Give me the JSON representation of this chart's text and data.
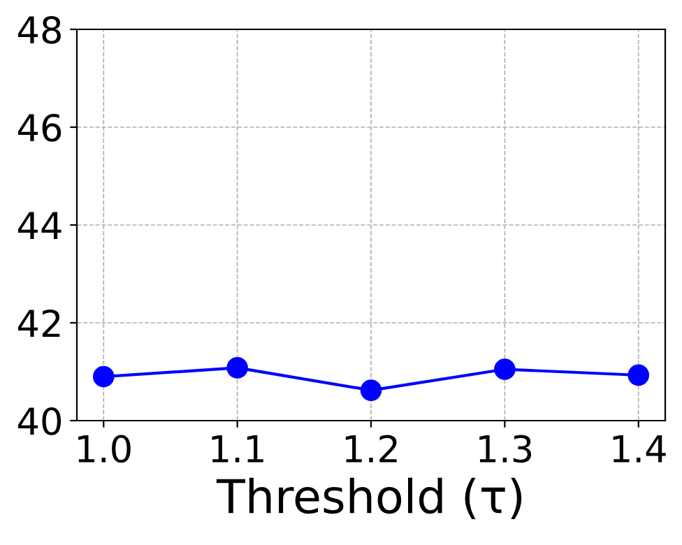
{
  "chart_data": {
    "type": "line",
    "xlabel": "Threshold (τ)",
    "x": [
      1.0,
      1.1,
      1.2,
      1.3,
      1.4
    ],
    "series": [
      {
        "color": "#0000ff",
        "values": [
          40.9,
          41.08,
          40.62,
          41.05,
          40.93
        ]
      }
    ],
    "xlim": [
      0.98,
      1.42
    ],
    "xticks": [
      {
        "value": 1.0,
        "label": "1.0"
      },
      1.1,
      1.2,
      1.3,
      1.4
    ],
    "ylim": [
      40,
      48
    ],
    "yticks": [
      40,
      42,
      44,
      46,
      48
    ],
    "grid": true,
    "marker": "circle",
    "line_style": "solid"
  }
}
